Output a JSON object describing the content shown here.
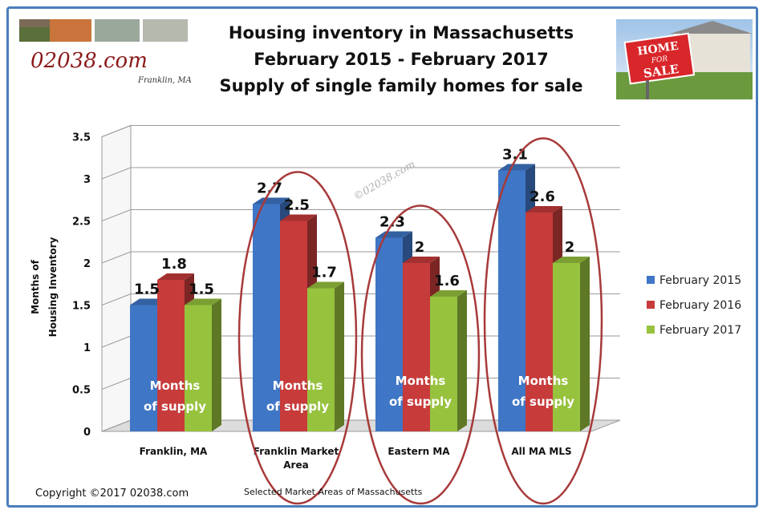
{
  "header": {
    "title_lines": [
      "Housing inventory in Massachusetts",
      "February 2015 - February 2017",
      "Supply of single family homes for sale"
    ],
    "logo_text": "02038.com",
    "logo_subtext": "Franklin, MA",
    "sign_line1": "HOME",
    "sign_line2": "FOR",
    "sign_line3": "SALE"
  },
  "chart_data": {
    "type": "bar",
    "categories": [
      [
        "Franklin, MA"
      ],
      [
        "Franklin Market",
        "Area"
      ],
      [
        "Eastern MA"
      ],
      [
        "All MA MLS"
      ]
    ],
    "series": [
      {
        "name": "February 2015",
        "values": [
          1.5,
          2.7,
          2.3,
          3.1
        ],
        "color": "#3f76c6"
      },
      {
        "name": "February 2016",
        "values": [
          1.8,
          2.5,
          2.0,
          2.6
        ],
        "color": "#c73b3b"
      },
      {
        "name": "February 2017",
        "values": [
          1.5,
          1.7,
          1.6,
          2.0
        ],
        "color": "#97c23e"
      }
    ],
    "value_labels": [
      [
        "1.5",
        "1.8",
        "1.5"
      ],
      [
        "2.7",
        "2.5",
        "1.7"
      ],
      [
        "2.3",
        "2",
        "1.6"
      ],
      [
        "3.1",
        "2.6",
        "2"
      ]
    ],
    "ylim": [
      0,
      3.5
    ],
    "yticks": [
      "0",
      "0.5",
      "1",
      "1.5",
      "2",
      "2.5",
      "3",
      "3.5"
    ],
    "ylabel_lines": [
      "Months of",
      "Housing Inventory"
    ],
    "xlabel": "Selected Market Areas of Massachusetts",
    "bar_annotation": [
      "Months",
      "of supply"
    ],
    "legend_position": "right",
    "highlight_color": "#a83a3a"
  },
  "watermark": "©02038.com",
  "footer": {
    "copyright": "Copyright ©2017  02038.com"
  }
}
